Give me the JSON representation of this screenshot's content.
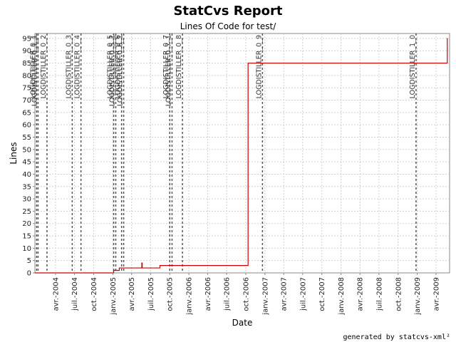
{
  "title": "StatCvs Report",
  "subtitle": "Lines Of Code for test/",
  "footer": "generated by statcvs-xml²",
  "chart_data": {
    "type": "line",
    "interpolation": "step",
    "xlabel": "Date",
    "ylabel": "Lines",
    "ylim": [
      0,
      97
    ],
    "xlim": [
      "2003-12-24",
      "2009-06-05"
    ],
    "y_ticks": [
      0,
      5,
      10,
      15,
      20,
      25,
      30,
      35,
      40,
      45,
      50,
      55,
      60,
      65,
      70,
      75,
      80,
      85,
      90,
      95
    ],
    "x_ticks": [
      {
        "date": "2004-04-01",
        "label": "avr.-2004"
      },
      {
        "date": "2004-07-01",
        "label": "juil.-2004"
      },
      {
        "date": "2004-10-01",
        "label": "oct.-2004"
      },
      {
        "date": "2005-01-01",
        "label": "janv.-2005"
      },
      {
        "date": "2005-04-01",
        "label": "avr.-2005"
      },
      {
        "date": "2005-07-01",
        "label": "juil.-2005"
      },
      {
        "date": "2005-10-01",
        "label": "oct.-2005"
      },
      {
        "date": "2006-01-01",
        "label": "janv.-2006"
      },
      {
        "date": "2006-04-01",
        "label": "avr.-2006"
      },
      {
        "date": "2006-07-01",
        "label": "juil.-2006"
      },
      {
        "date": "2006-10-01",
        "label": "oct.-2006"
      },
      {
        "date": "2007-01-01",
        "label": "janv.-2007"
      },
      {
        "date": "2007-04-01",
        "label": "avr.-2007"
      },
      {
        "date": "2007-07-01",
        "label": "juil.-2007"
      },
      {
        "date": "2007-10-01",
        "label": "oct.-2007"
      },
      {
        "date": "2008-01-01",
        "label": "janv.-2008"
      },
      {
        "date": "2008-04-01",
        "label": "avr.-2008"
      },
      {
        "date": "2008-07-01",
        "label": "juil.-2008"
      },
      {
        "date": "2008-10-01",
        "label": "oct.-2008"
      },
      {
        "date": "2009-01-01",
        "label": "janv.-2009"
      },
      {
        "date": "2009-04-01",
        "label": "avr.-2009"
      }
    ],
    "grid": true,
    "series": [
      {
        "color": "#cc0000",
        "points": [
          {
            "x": "2003-12-24",
            "y": 0
          },
          {
            "x": "2005-01-05",
            "y": 1
          },
          {
            "x": "2005-02-01",
            "y": 2
          },
          {
            "x": "2005-05-20",
            "y": 4
          },
          {
            "x": "2005-05-22",
            "y": 2
          },
          {
            "x": "2005-08-15",
            "y": 3
          },
          {
            "x": "2006-10-12",
            "y": 85
          },
          {
            "x": "2009-05-25",
            "y": 95
          }
        ]
      }
    ],
    "markers": [
      {
        "label": "LOGDISTILLER_0_1",
        "x": "2004-01-01"
      },
      {
        "label": "LOGDISTILLER_0_1_1",
        "x": "2004-01-08"
      },
      {
        "label": "LOGDISTILLER_0_2",
        "x": "2004-02-20"
      },
      {
        "label": "LOGDISTILLER_0_3",
        "x": "2004-06-20"
      },
      {
        "label": "LOGDISTILLER_0_4",
        "x": "2004-08-01"
      },
      {
        "label": "LOGDISTILLER_0_5",
        "x": "2005-01-05"
      },
      {
        "label": "LOGDISTILLER_0_5_1",
        "x": "2005-01-15"
      },
      {
        "label": "LOGDISTILLER_0_6",
        "x": "2005-02-12"
      },
      {
        "label": "LOGDISTILLER_0_6_1",
        "x": "2005-02-22"
      },
      {
        "label": "LOGDISTILLER_0_7",
        "x": "2005-10-01"
      },
      {
        "label": "LOGDISTILLER_0_7_1",
        "x": "2005-10-12"
      },
      {
        "label": "LOGDISTILLER_0_8",
        "x": "2005-12-01"
      },
      {
        "label": "LOGDISTILLER_0_9",
        "x": "2006-12-20"
      },
      {
        "label": "LOGDISTILLER_1_0",
        "x": "2008-12-26"
      }
    ]
  }
}
